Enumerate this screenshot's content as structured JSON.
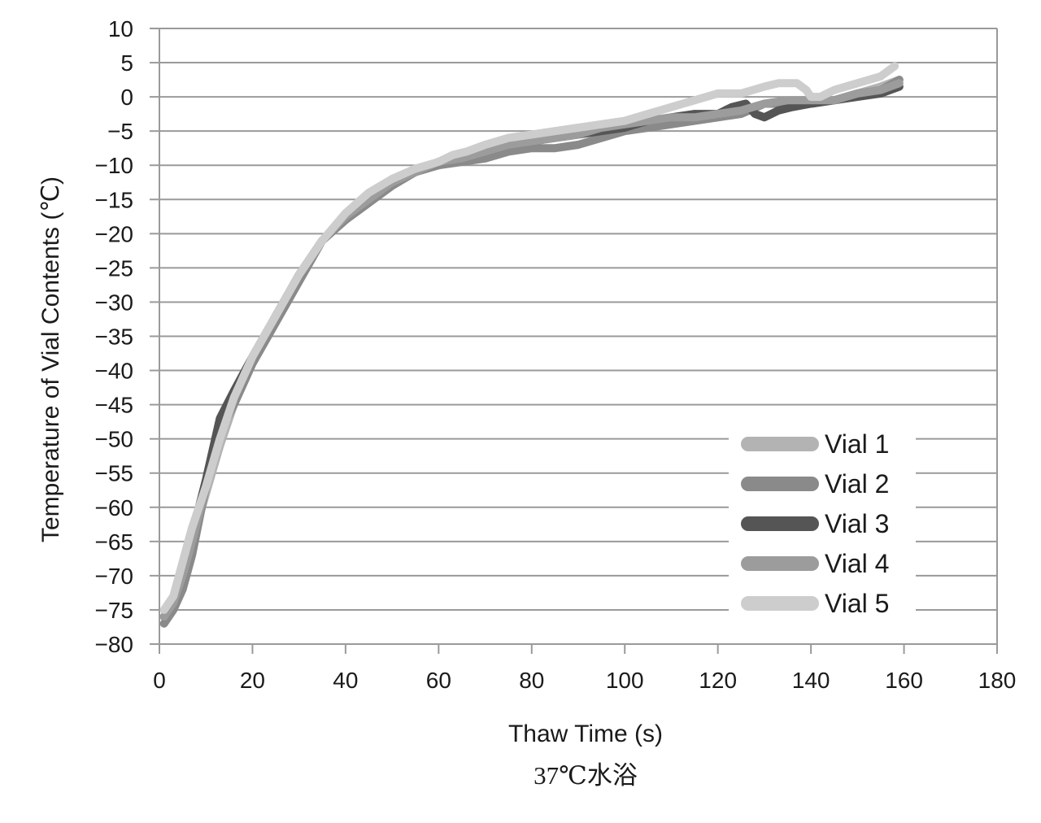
{
  "caption": "37℃水浴",
  "chart_data": {
    "type": "line",
    "title": "",
    "xlabel": "Thaw Time (s)",
    "ylabel": "Temperature of Vial Contents (℃)",
    "xlim": [
      0,
      180
    ],
    "ylim": [
      -80,
      10
    ],
    "x_ticks": [
      0,
      20,
      40,
      60,
      80,
      100,
      120,
      140,
      160,
      180
    ],
    "y_ticks": [
      10,
      5,
      0,
      -5,
      -10,
      -15,
      -20,
      -25,
      -30,
      -35,
      -40,
      -45,
      -50,
      -55,
      -60,
      -65,
      -70,
      -75,
      -80
    ],
    "grid": "horizontal",
    "legend_position": "bottom-right",
    "series": [
      {
        "name": "Vial 1",
        "color": "#b3b3b3",
        "x": [
          1,
          3,
          5,
          7,
          10,
          13,
          16,
          20,
          25,
          30,
          35,
          40,
          45,
          50,
          55,
          60,
          65,
          70,
          75,
          80,
          85,
          90,
          95,
          100,
          105,
          110,
          115,
          120,
          125,
          130,
          135,
          140,
          145,
          150,
          155,
          159
        ],
        "y": [
          -76,
          -74,
          -71,
          -65,
          -58,
          -51,
          -45,
          -39,
          -32,
          -26,
          -21,
          -18,
          -15,
          -12.5,
          -11,
          -9.5,
          -8.5,
          -7.5,
          -7,
          -6.5,
          -6,
          -5.5,
          -5,
          -4.5,
          -4,
          -3.5,
          -3,
          -2.5,
          -2,
          -1,
          -1,
          -1,
          -0.5,
          0.5,
          1.5,
          2.5
        ]
      },
      {
        "name": "Vial 2",
        "color": "#8a8a8a",
        "x": [
          1,
          3,
          5,
          7,
          10,
          13,
          16,
          20,
          25,
          30,
          35,
          40,
          45,
          50,
          55,
          60,
          65,
          70,
          75,
          80,
          85,
          90,
          95,
          100,
          105,
          110,
          115,
          120,
          125,
          130,
          135,
          140,
          145,
          150,
          155,
          159
        ],
        "y": [
          -77,
          -75,
          -72,
          -67,
          -57,
          -49,
          -45,
          -39,
          -33,
          -27,
          -21,
          -18,
          -15.5,
          -13,
          -11,
          -10,
          -9.5,
          -9,
          -8,
          -7.5,
          -7.5,
          -7,
          -6,
          -5,
          -4.5,
          -4,
          -3.5,
          -3,
          -2.5,
          -1,
          -1,
          -1,
          -0.5,
          0.5,
          1,
          2.5
        ]
      },
      {
        "name": "Vial 3",
        "color": "#555555",
        "x": [
          1,
          3,
          5,
          7,
          10,
          13,
          16,
          20,
          25,
          30,
          35,
          40,
          45,
          50,
          55,
          60,
          65,
          70,
          75,
          80,
          85,
          90,
          95,
          100,
          105,
          110,
          115,
          120,
          123,
          126,
          128,
          130,
          133,
          136,
          140,
          145,
          150,
          155,
          159
        ],
        "y": [
          -76,
          -74,
          -70,
          -64,
          -56,
          -47,
          -43,
          -38,
          -32,
          -26,
          -21,
          -17.5,
          -15,
          -12.5,
          -11,
          -9.5,
          -9,
          -8,
          -7,
          -6.5,
          -6,
          -5.5,
          -5,
          -4.5,
          -3.5,
          -3,
          -2.5,
          -2.5,
          -1.5,
          -1,
          -2.5,
          -3,
          -2,
          -1.5,
          -1,
          -0.5,
          0,
          0.5,
          1.5
        ]
      },
      {
        "name": "Vial 4",
        "color": "#9c9c9c",
        "x": [
          1,
          3,
          5,
          7,
          10,
          13,
          16,
          20,
          25,
          30,
          35,
          40,
          45,
          50,
          55,
          60,
          65,
          70,
          75,
          80,
          85,
          90,
          95,
          100,
          105,
          110,
          115,
          120,
          125,
          130,
          135,
          140,
          145,
          150,
          155,
          159
        ],
        "y": [
          -76,
          -74,
          -70,
          -65,
          -57,
          -50,
          -44,
          -38,
          -32,
          -26,
          -21,
          -17.5,
          -15,
          -12.5,
          -11,
          -9.5,
          -9,
          -8,
          -7,
          -6.5,
          -6,
          -5.5,
          -4.5,
          -4,
          -3.5,
          -3,
          -3,
          -2.5,
          -2,
          -1,
          -0.5,
          -0.5,
          -0.5,
          0.5,
          1,
          2
        ]
      },
      {
        "name": "Vial 5",
        "color": "#cdcdcd",
        "x": [
          1,
          3,
          5,
          7,
          10,
          13,
          16,
          20,
          25,
          30,
          35,
          40,
          45,
          50,
          55,
          60,
          63,
          66,
          70,
          75,
          80,
          85,
          90,
          95,
          100,
          105,
          110,
          115,
          120,
          125,
          130,
          133,
          135,
          137,
          139,
          140,
          142,
          145,
          150,
          155,
          158
        ],
        "y": [
          -75,
          -73,
          -68,
          -63,
          -57,
          -50,
          -44,
          -38,
          -32,
          -26,
          -21,
          -17,
          -14,
          -12,
          -10.5,
          -9.5,
          -8.5,
          -8,
          -7,
          -6,
          -5.5,
          -5,
          -4.5,
          -4,
          -3.5,
          -2.5,
          -1.5,
          -0.5,
          0.5,
          0.5,
          1.5,
          2,
          2,
          2,
          1,
          0,
          0,
          1,
          2,
          3,
          4.5
        ]
      }
    ]
  }
}
